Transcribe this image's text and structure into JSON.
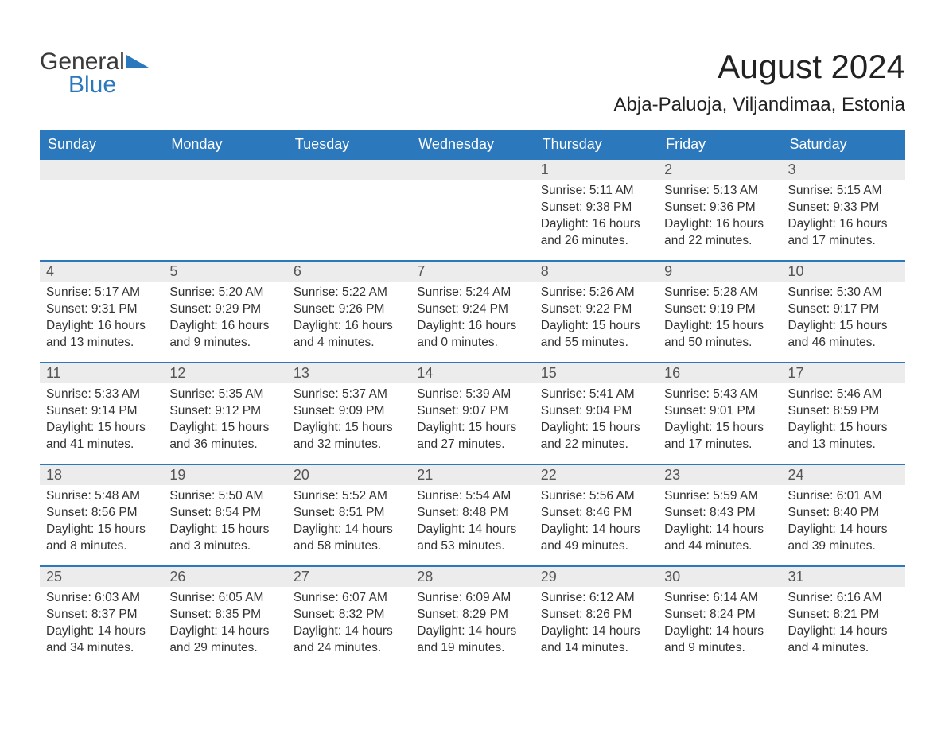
{
  "logo": {
    "primary": "General",
    "secondary": "Blue"
  },
  "title": "August 2024",
  "location": "Abja-Paluoja, Viljandimaa, Estonia",
  "colors": {
    "header_bg": "#2b78bd",
    "header_text": "#ffffff",
    "daynum_bg": "#ececec",
    "row_border": "#2b78bd",
    "body_text": "#333333",
    "logo_blue": "#2b78bd"
  },
  "weekdays": [
    "Sunday",
    "Monday",
    "Tuesday",
    "Wednesday",
    "Thursday",
    "Friday",
    "Saturday"
  ],
  "weeks": [
    [
      null,
      null,
      null,
      null,
      {
        "n": "1",
        "sunrise": "5:11 AM",
        "sunset": "9:38 PM",
        "daylight": "16 hours and 26 minutes."
      },
      {
        "n": "2",
        "sunrise": "5:13 AM",
        "sunset": "9:36 PM",
        "daylight": "16 hours and 22 minutes."
      },
      {
        "n": "3",
        "sunrise": "5:15 AM",
        "sunset": "9:33 PM",
        "daylight": "16 hours and 17 minutes."
      }
    ],
    [
      {
        "n": "4",
        "sunrise": "5:17 AM",
        "sunset": "9:31 PM",
        "daylight": "16 hours and 13 minutes."
      },
      {
        "n": "5",
        "sunrise": "5:20 AM",
        "sunset": "9:29 PM",
        "daylight": "16 hours and 9 minutes."
      },
      {
        "n": "6",
        "sunrise": "5:22 AM",
        "sunset": "9:26 PM",
        "daylight": "16 hours and 4 minutes."
      },
      {
        "n": "7",
        "sunrise": "5:24 AM",
        "sunset": "9:24 PM",
        "daylight": "16 hours and 0 minutes."
      },
      {
        "n": "8",
        "sunrise": "5:26 AM",
        "sunset": "9:22 PM",
        "daylight": "15 hours and 55 minutes."
      },
      {
        "n": "9",
        "sunrise": "5:28 AM",
        "sunset": "9:19 PM",
        "daylight": "15 hours and 50 minutes."
      },
      {
        "n": "10",
        "sunrise": "5:30 AM",
        "sunset": "9:17 PM",
        "daylight": "15 hours and 46 minutes."
      }
    ],
    [
      {
        "n": "11",
        "sunrise": "5:33 AM",
        "sunset": "9:14 PM",
        "daylight": "15 hours and 41 minutes."
      },
      {
        "n": "12",
        "sunrise": "5:35 AM",
        "sunset": "9:12 PM",
        "daylight": "15 hours and 36 minutes."
      },
      {
        "n": "13",
        "sunrise": "5:37 AM",
        "sunset": "9:09 PM",
        "daylight": "15 hours and 32 minutes."
      },
      {
        "n": "14",
        "sunrise": "5:39 AM",
        "sunset": "9:07 PM",
        "daylight": "15 hours and 27 minutes."
      },
      {
        "n": "15",
        "sunrise": "5:41 AM",
        "sunset": "9:04 PM",
        "daylight": "15 hours and 22 minutes."
      },
      {
        "n": "16",
        "sunrise": "5:43 AM",
        "sunset": "9:01 PM",
        "daylight": "15 hours and 17 minutes."
      },
      {
        "n": "17",
        "sunrise": "5:46 AM",
        "sunset": "8:59 PM",
        "daylight": "15 hours and 13 minutes."
      }
    ],
    [
      {
        "n": "18",
        "sunrise": "5:48 AM",
        "sunset": "8:56 PM",
        "daylight": "15 hours and 8 minutes."
      },
      {
        "n": "19",
        "sunrise": "5:50 AM",
        "sunset": "8:54 PM",
        "daylight": "15 hours and 3 minutes."
      },
      {
        "n": "20",
        "sunrise": "5:52 AM",
        "sunset": "8:51 PM",
        "daylight": "14 hours and 58 minutes."
      },
      {
        "n": "21",
        "sunrise": "5:54 AM",
        "sunset": "8:48 PM",
        "daylight": "14 hours and 53 minutes."
      },
      {
        "n": "22",
        "sunrise": "5:56 AM",
        "sunset": "8:46 PM",
        "daylight": "14 hours and 49 minutes."
      },
      {
        "n": "23",
        "sunrise": "5:59 AM",
        "sunset": "8:43 PM",
        "daylight": "14 hours and 44 minutes."
      },
      {
        "n": "24",
        "sunrise": "6:01 AM",
        "sunset": "8:40 PM",
        "daylight": "14 hours and 39 minutes."
      }
    ],
    [
      {
        "n": "25",
        "sunrise": "6:03 AM",
        "sunset": "8:37 PM",
        "daylight": "14 hours and 34 minutes."
      },
      {
        "n": "26",
        "sunrise": "6:05 AM",
        "sunset": "8:35 PM",
        "daylight": "14 hours and 29 minutes."
      },
      {
        "n": "27",
        "sunrise": "6:07 AM",
        "sunset": "8:32 PM",
        "daylight": "14 hours and 24 minutes."
      },
      {
        "n": "28",
        "sunrise": "6:09 AM",
        "sunset": "8:29 PM",
        "daylight": "14 hours and 19 minutes."
      },
      {
        "n": "29",
        "sunrise": "6:12 AM",
        "sunset": "8:26 PM",
        "daylight": "14 hours and 14 minutes."
      },
      {
        "n": "30",
        "sunrise": "6:14 AM",
        "sunset": "8:24 PM",
        "daylight": "14 hours and 9 minutes."
      },
      {
        "n": "31",
        "sunrise": "6:16 AM",
        "sunset": "8:21 PM",
        "daylight": "14 hours and 4 minutes."
      }
    ]
  ],
  "labels": {
    "sunrise": "Sunrise:",
    "sunset": "Sunset:",
    "daylight": "Daylight:"
  }
}
